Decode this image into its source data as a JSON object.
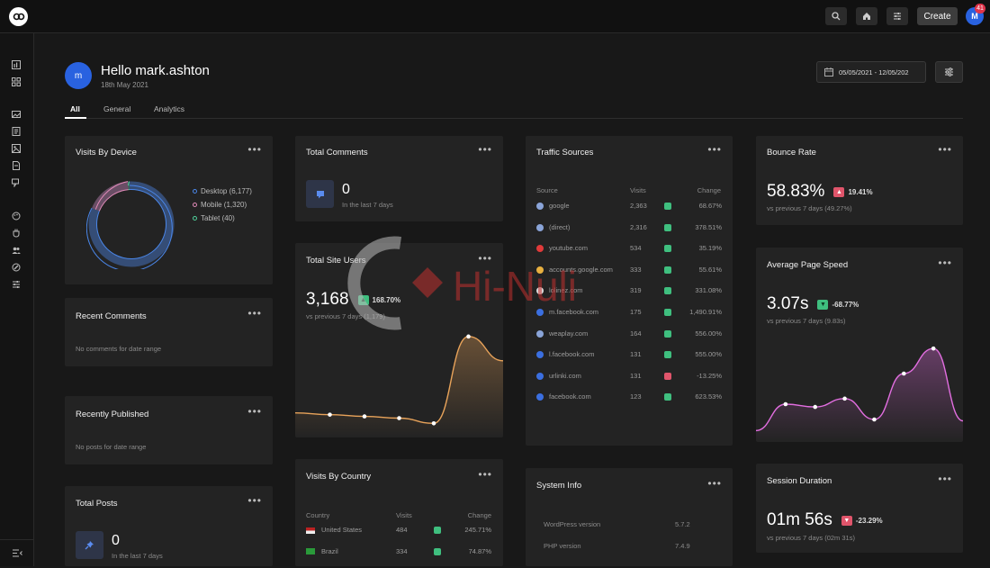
{
  "topbar": {
    "create_label": "Create",
    "avatar_initial": "M",
    "notification_count": "41"
  },
  "header": {
    "greeting": "Hello mark.ashton",
    "avatar_initial": "m",
    "date": "18th May 2021",
    "date_range": "05/05/2021 - 12/05/202"
  },
  "tabs": [
    {
      "label": "All",
      "active": true
    },
    {
      "label": "General"
    },
    {
      "label": "Analytics"
    }
  ],
  "visits_by_device": {
    "title": "Visits By Device",
    "legend": [
      {
        "label": "Desktop (6,177)",
        "color": "#4a86e8"
      },
      {
        "label": "Mobile (1,320)",
        "color": "#e08ab8"
      },
      {
        "label": "Tablet (40)",
        "color": "#4fd09a"
      }
    ],
    "chart_data": {
      "type": "pie",
      "categories": [
        "Desktop",
        "Mobile",
        "Tablet"
      ],
      "values": [
        6177,
        1320,
        40
      ]
    }
  },
  "recent_comments": {
    "title": "Recent Comments",
    "empty": "No comments for date range"
  },
  "recently_published": {
    "title": "Recently Published",
    "empty": "No posts for date range"
  },
  "total_posts": {
    "title": "Total Posts",
    "value": "0",
    "sub": "In the last 7 days"
  },
  "total_comments": {
    "title": "Total Comments",
    "value": "0",
    "sub": "In the last 7 days"
  },
  "total_site_users": {
    "title": "Total Site Users",
    "value": "3,168",
    "change": "168.70%",
    "sub": "vs previous 7 days (1,179)",
    "chart_data": {
      "type": "area",
      "x": [
        1,
        2,
        3,
        4,
        5,
        6,
        7
      ],
      "values": [
        1.0,
        0.9,
        0.8,
        0.7,
        0.4,
        5.4,
        4.0
      ],
      "color": "#e8a35a"
    }
  },
  "visits_by_country": {
    "title": "Visits By Country",
    "headers": [
      "Country",
      "Visits",
      "Change"
    ],
    "rows": [
      {
        "country": "United States",
        "visits": "484",
        "change": "245.71%",
        "dir": "up"
      },
      {
        "country": "Brazil",
        "visits": "334",
        "change": "74.87%",
        "dir": "up"
      }
    ]
  },
  "traffic_sources": {
    "title": "Traffic Sources",
    "headers": [
      "Source",
      "Visits",
      "Change"
    ],
    "rows": [
      {
        "source": "google",
        "visits": "2,363",
        "change": "68.67%",
        "dir": "up",
        "color": "#8aa4d8"
      },
      {
        "source": "(direct)",
        "visits": "2,316",
        "change": "378.51%",
        "dir": "up",
        "color": "#8aa4d8"
      },
      {
        "source": "youtube.com",
        "visits": "534",
        "change": "35.19%",
        "dir": "up",
        "color": "#e03a3a"
      },
      {
        "source": "accounts.google.com",
        "visits": "333",
        "change": "55.61%",
        "dir": "up",
        "color": "#e8b040"
      },
      {
        "source": "lolinez.com",
        "visits": "319",
        "change": "331.08%",
        "dir": "up",
        "color": "#dddddd"
      },
      {
        "source": "m.facebook.com",
        "visits": "175",
        "change": "1,490.91%",
        "dir": "up",
        "color": "#3b6fe0"
      },
      {
        "source": "weaplay.com",
        "visits": "164",
        "change": "556.00%",
        "dir": "up",
        "color": "#8aa4d8"
      },
      {
        "source": "l.facebook.com",
        "visits": "131",
        "change": "555.00%",
        "dir": "up",
        "color": "#3b6fe0"
      },
      {
        "source": "urlinki.com",
        "visits": "131",
        "change": "-13.25%",
        "dir": "down",
        "color": "#3b6fe0"
      },
      {
        "source": "facebook.com",
        "visits": "123",
        "change": "623.53%",
        "dir": "up",
        "color": "#3b6fe0"
      }
    ]
  },
  "system_info": {
    "title": "System Info",
    "rows": [
      {
        "label": "WordPress version",
        "value": "5.7.2"
      },
      {
        "label": "PHP version",
        "value": "7.4.9"
      }
    ]
  },
  "bounce_rate": {
    "title": "Bounce Rate",
    "value": "58.83%",
    "change": "19.41%",
    "dir": "up",
    "sub": "vs previous 7 days (49.27%)"
  },
  "page_speed": {
    "title": "Average Page Speed",
    "value": "3.07s",
    "change": "-68.77%",
    "dir": "down",
    "sub": "vs previous 7 days (9.83s)",
    "chart_data": {
      "type": "area",
      "x": [
        1,
        2,
        3,
        4,
        5,
        6,
        7,
        8
      ],
      "values": [
        0.3,
        2.2,
        2.0,
        2.6,
        1.1,
        4.4,
        6.2,
        1.0
      ],
      "color": "#e26ee0"
    }
  },
  "session_duration": {
    "title": "Session Duration",
    "value": "01m 56s",
    "change": "-23.29%",
    "dir": "down",
    "sub": "vs previous 7 days (02m 31s)"
  },
  "watermark": "Hi-Nuli"
}
